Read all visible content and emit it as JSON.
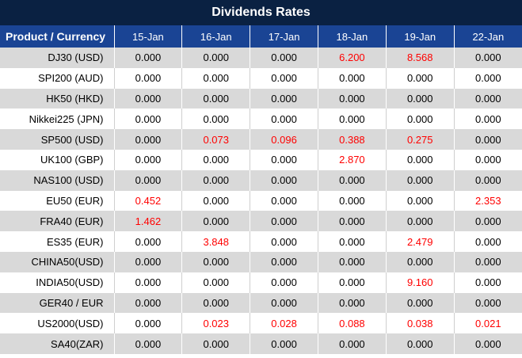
{
  "title": "Dividends Rates",
  "table": {
    "zero_value": "0.000",
    "columns": [
      "Product / Currency",
      "15-Jan",
      "16-Jan",
      "17-Jan",
      "18-Jan",
      "19-Jan",
      "22-Jan"
    ],
    "rows": [
      {
        "product": "DJ30 (USD)",
        "values": [
          "0.000",
          "0.000",
          "0.000",
          "6.200",
          "8.568",
          "0.000"
        ]
      },
      {
        "product": "SPI200 (AUD)",
        "values": [
          "0.000",
          "0.000",
          "0.000",
          "0.000",
          "0.000",
          "0.000"
        ]
      },
      {
        "product": "HK50 (HKD)",
        "values": [
          "0.000",
          "0.000",
          "0.000",
          "0.000",
          "0.000",
          "0.000"
        ]
      },
      {
        "product": "Nikkei225 (JPN)",
        "values": [
          "0.000",
          "0.000",
          "0.000",
          "0.000",
          "0.000",
          "0.000"
        ]
      },
      {
        "product": "SP500 (USD)",
        "values": [
          "0.000",
          "0.073",
          "0.096",
          "0.388",
          "0.275",
          "0.000"
        ]
      },
      {
        "product": "UK100 (GBP)",
        "values": [
          "0.000",
          "0.000",
          "0.000",
          "2.870",
          "0.000",
          "0.000"
        ]
      },
      {
        "product": "NAS100 (USD)",
        "values": [
          "0.000",
          "0.000",
          "0.000",
          "0.000",
          "0.000",
          "0.000"
        ]
      },
      {
        "product": "EU50 (EUR)",
        "values": [
          "0.452",
          "0.000",
          "0.000",
          "0.000",
          "0.000",
          "2.353"
        ]
      },
      {
        "product": "FRA40 (EUR)",
        "values": [
          "1.462",
          "0.000",
          "0.000",
          "0.000",
          "0.000",
          "0.000"
        ]
      },
      {
        "product": "ES35 (EUR)",
        "values": [
          "0.000",
          "3.848",
          "0.000",
          "0.000",
          "2.479",
          "0.000"
        ]
      },
      {
        "product": "CHINA50(USD)",
        "values": [
          "0.000",
          "0.000",
          "0.000",
          "0.000",
          "0.000",
          "0.000"
        ]
      },
      {
        "product": "INDIA50(USD)",
        "values": [
          "0.000",
          "0.000",
          "0.000",
          "0.000",
          "9.160",
          "0.000"
        ]
      },
      {
        "product": "GER40 / EUR",
        "values": [
          "0.000",
          "0.000",
          "0.000",
          "0.000",
          "0.000",
          "0.000"
        ]
      },
      {
        "product": "US2000(USD)",
        "values": [
          "0.000",
          "0.023",
          "0.028",
          "0.088",
          "0.038",
          "0.021"
        ]
      },
      {
        "product": "SA40(ZAR)",
        "values": [
          "0.000",
          "0.000",
          "0.000",
          "0.000",
          "0.000",
          "0.000"
        ]
      }
    ]
  },
  "colors": {
    "title_bg": "#0a2142",
    "header_bg": "#1a4494",
    "header_text": "#ffffff",
    "row_bg": "#ffffff",
    "row_alt_bg": "#d9d9d9",
    "value_zero": "#000000",
    "value_nonzero": "#ff0000"
  }
}
